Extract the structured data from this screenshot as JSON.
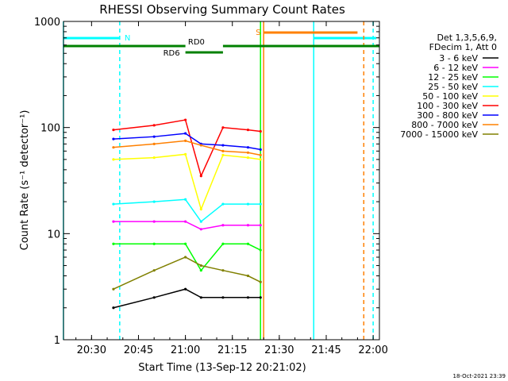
{
  "chart_data": {
    "type": "line",
    "title": "RHESSI Observing Summary Count Rates",
    "xlabel": "Start Time (13-Sep-12 20:21:02)",
    "ylabel": "Count Rate (s⁻¹ detector⁻¹)",
    "yscale": "log",
    "ylim": [
      1,
      1000
    ],
    "xlim": [
      "20:21:02",
      "22:02:00"
    ],
    "x_ticks": [
      "20:30",
      "20:45",
      "21:00",
      "21:15",
      "21:30",
      "21:45",
      "22:00"
    ],
    "y_ticks": [
      "1",
      "10",
      "100",
      "1000"
    ],
    "timestamp": "18-Oct-2021 23:39",
    "legend": {
      "position": "right",
      "header": [
        "Det 1,3,5,6,9,",
        "FDecim 1, Att 0"
      ]
    },
    "series": [
      {
        "name": "3 - 6 keV",
        "color": "#000000",
        "x": [
          "20:37",
          "20:50",
          "21:00",
          "21:05",
          "21:12",
          "21:20",
          "21:24"
        ],
        "values": [
          2.0,
          2.5,
          3.0,
          2.5,
          2.5,
          2.5,
          2.5
        ]
      },
      {
        "name": "6 - 12 keV",
        "color": "#ff00ff",
        "x": [
          "20:37",
          "20:50",
          "21:00",
          "21:05",
          "21:12",
          "21:20",
          "21:24"
        ],
        "values": [
          13,
          13,
          13,
          11,
          12,
          12,
          12
        ]
      },
      {
        "name": "12 - 25 keV",
        "color": "#00ff00",
        "x": [
          "20:37",
          "20:50",
          "21:00",
          "21:05",
          "21:12",
          "21:20",
          "21:24"
        ],
        "values": [
          8,
          8,
          8,
          4.5,
          8,
          8,
          7
        ]
      },
      {
        "name": "25 - 50 keV",
        "color": "#00ffff",
        "x": [
          "20:37",
          "20:50",
          "21:00",
          "21:05",
          "21:12",
          "21:20",
          "21:24"
        ],
        "values": [
          19,
          20,
          21,
          13,
          19,
          19,
          19
        ]
      },
      {
        "name": "50 - 100 keV",
        "color": "#ffff00",
        "x": [
          "20:37",
          "20:50",
          "21:00",
          "21:05",
          "21:12",
          "21:20",
          "21:24"
        ],
        "values": [
          50,
          52,
          56,
          17,
          55,
          52,
          50
        ]
      },
      {
        "name": "100 - 300 keV",
        "color": "#ff0000",
        "x": [
          "20:37",
          "20:50",
          "21:00",
          "21:05",
          "21:12",
          "21:20",
          "21:24"
        ],
        "values": [
          95,
          105,
          118,
          35,
          100,
          95,
          92
        ]
      },
      {
        "name": "300 - 800 keV",
        "color": "#0000ff",
        "x": [
          "20:37",
          "20:50",
          "21:00",
          "21:05",
          "21:12",
          "21:20",
          "21:24"
        ],
        "values": [
          78,
          82,
          88,
          70,
          68,
          65,
          62
        ]
      },
      {
        "name": "800 - 7000 keV",
        "color": "#ff8000",
        "x": [
          "20:37",
          "20:50",
          "21:00",
          "21:05",
          "21:12",
          "21:20",
          "21:24"
        ],
        "values": [
          65,
          70,
          75,
          68,
          60,
          58,
          55
        ]
      },
      {
        "name": "7000 - 15000 keV",
        "color": "#808000",
        "x": [
          "20:37",
          "20:50",
          "21:00",
          "21:05",
          "21:12",
          "21:20",
          "21:24"
        ],
        "values": [
          3,
          4.5,
          6,
          5,
          4.5,
          4,
          3.5
        ]
      }
    ],
    "flags": [
      {
        "label": "N",
        "color": "#00ffff",
        "segments": [
          [
            "20:21",
            "20:39"
          ],
          [
            "21:41",
            "22:01"
          ]
        ],
        "dashed_markers": [
          "20:39",
          "22:00"
        ]
      },
      {
        "label": "S",
        "color": "#ff8000",
        "segments": [
          [
            "21:25",
            "21:55"
          ]
        ],
        "dashed_markers": [
          "21:57"
        ]
      },
      {
        "label": "RD0",
        "color": "#008000",
        "segments": [
          [
            "20:21",
            "21:00"
          ],
          [
            "21:12",
            "22:02"
          ]
        ]
      },
      {
        "label": "RD6",
        "color": "#008000",
        "segments": [
          [
            "21:00",
            "21:12"
          ]
        ]
      }
    ],
    "vertical_markers": [
      {
        "x": "20:21",
        "color": "#00ffff",
        "style": "solid"
      },
      {
        "x": "21:24",
        "color": "#00ff00",
        "style": "solid"
      },
      {
        "x": "21:25",
        "color": "#ff8000",
        "style": "solid"
      },
      {
        "x": "21:41",
        "color": "#00ffff",
        "style": "solid"
      }
    ]
  }
}
